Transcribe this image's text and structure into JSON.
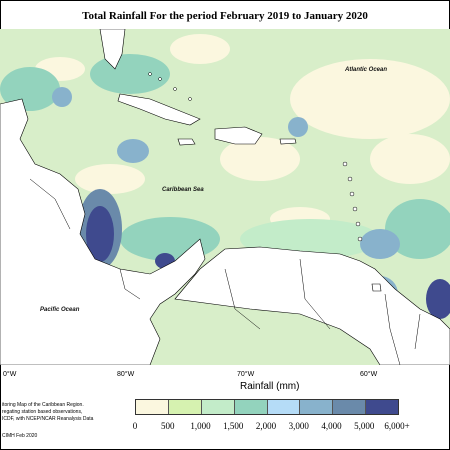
{
  "title": "Total Rainfall For the period February 2019 to January 2020",
  "map": {
    "labels": {
      "atlantic": "Atlantic Ocean",
      "caribbean": "Caribbean Sea",
      "pacific": "Pacific Ocean"
    },
    "longitude_ticks": [
      "0°W",
      "80°W",
      "70°W",
      "60°W"
    ]
  },
  "legend": {
    "title": "Rainfall (mm)",
    "colors": [
      "#fbf7df",
      "#d6f2b0",
      "#c3ecc9",
      "#93d3bd",
      "#b5dcf7",
      "#88b2cc",
      "#6a8aaa",
      "#3f4a8e"
    ],
    "ticks": [
      "0",
      "500",
      "1,000",
      "1,500",
      "2,000",
      "3,000",
      "4,000",
      "5,000",
      "6,000+"
    ]
  },
  "credit": {
    "line1": "itoring Map of the Caribbean Region.",
    "line2": "regating station based observations,",
    "line3": "ICDF, with NCEP/NCAR Reanalysis Data",
    "line4": "CIMH Feb 2020"
  }
}
